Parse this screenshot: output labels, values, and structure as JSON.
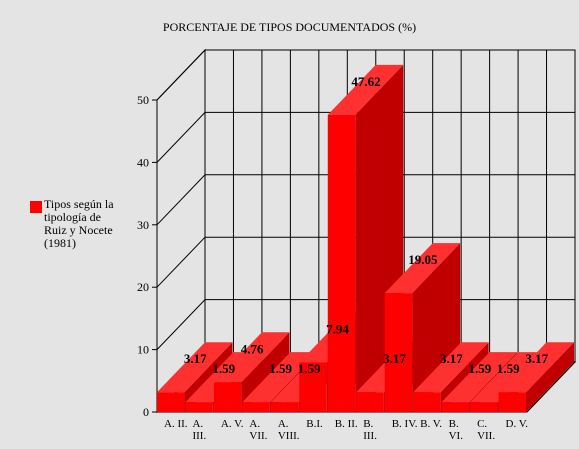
{
  "chart_data": {
    "type": "bar3d",
    "title": "PORCENTAJE DE TIPOS DOCUMENTADOS (%)",
    "categories": [
      "A. II.",
      "A. III.",
      "A. V.",
      "A. VII.",
      "A. VIII.",
      "B.I.",
      "B. II.",
      "B. III.",
      "B. IV.",
      "B. V.",
      "B. VI.",
      "C. VII.",
      "D. V."
    ],
    "series": [
      {
        "name": "Tipos según la tipología de Ruiz y Nocete (1981)",
        "color": "#ff0000",
        "values": [
          3.17,
          1.59,
          4.76,
          1.59,
          1.59,
          7.94,
          47.62,
          3.17,
          19.05,
          3.17,
          1.59,
          1.59,
          3.17
        ]
      }
    ],
    "ylim": [
      0,
      50
    ],
    "yticks": [
      0,
      10,
      20,
      30,
      40,
      50
    ],
    "grid": true,
    "legend": "left"
  }
}
